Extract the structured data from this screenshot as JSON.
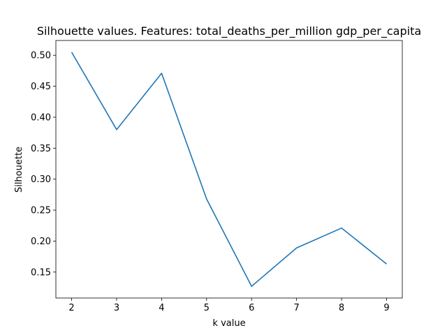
{
  "chart_data": {
    "type": "line",
    "title": "Silhouette values. Features:  total_deaths_per_million gdp_per_capita",
    "xlabel": "k value",
    "ylabel": "Silhouette",
    "x": [
      2,
      3,
      4,
      5,
      6,
      7,
      8,
      9
    ],
    "series": [
      {
        "values": [
          0.505,
          0.38,
          0.471,
          0.268,
          0.127,
          0.189,
          0.221,
          0.163
        ],
        "color": "#1f77b4"
      }
    ],
    "xticks": [
      "2",
      "3",
      "4",
      "5",
      "6",
      "7",
      "8",
      "9"
    ],
    "yticks": [
      "0.15",
      "0.20",
      "0.25",
      "0.30",
      "0.35",
      "0.40",
      "0.45",
      "0.50"
    ],
    "xlim": [
      1.65,
      9.35
    ],
    "ylim": [
      0.1081,
      0.5239
    ],
    "grid": false
  }
}
